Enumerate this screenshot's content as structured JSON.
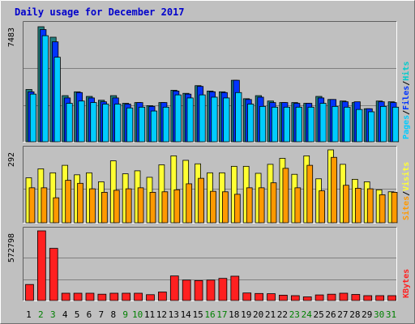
{
  "title": "Daily usage for December 2017",
  "colors": {
    "page_bg": "#c0c0c0",
    "plot_bg": "#c0c0c0",
    "title": "#0000cc",
    "hits": "#00cccc",
    "files": "#0033ff",
    "pages": "#00ccff",
    "visits": "#ffff33",
    "sites": "#ff9900",
    "kbytes": "#ff2020",
    "slash": "#000000",
    "weekend_label": "#008000",
    "weekday_label": "#000000"
  },
  "chart_data": [
    {
      "type": "bar",
      "panel": "top",
      "max_label": "7483",
      "ylim": [
        0,
        7483
      ],
      "legend": [
        {
          "key": "pages",
          "text": "Pages"
        },
        {
          "key": "files",
          "text": "Files"
        },
        {
          "key": "hits",
          "text": "Hits"
        }
      ],
      "series": [
        {
          "name": "Hits",
          "values": [
            3400,
            7483,
            6800,
            3000,
            3250,
            2950,
            2700,
            3000,
            2500,
            2550,
            2350,
            2550,
            3350,
            3150,
            3650,
            3300,
            3250,
            4000,
            2800,
            3000,
            2650,
            2550,
            2550,
            2500,
            2950,
            2750,
            2650,
            2550,
            2150,
            2650,
            2600
          ]
        },
        {
          "name": "Files",
          "values": [
            3250,
            7300,
            6500,
            2850,
            3200,
            2850,
            2600,
            2850,
            2450,
            2550,
            2300,
            2550,
            3300,
            3100,
            3600,
            3250,
            3200,
            4000,
            2750,
            2900,
            2550,
            2550,
            2500,
            2500,
            2850,
            2750,
            2600,
            2600,
            2150,
            2600,
            2550
          ]
        },
        {
          "name": "Pages",
          "values": [
            3100,
            6900,
            5500,
            2500,
            2650,
            2550,
            2450,
            2450,
            2200,
            2250,
            2000,
            2250,
            3050,
            2850,
            3050,
            2900,
            2850,
            3200,
            2450,
            2300,
            2250,
            2250,
            2250,
            2250,
            2500,
            2300,
            2250,
            2100,
            1950,
            2300,
            2250
          ]
        }
      ]
    },
    {
      "type": "bar",
      "panel": "middle",
      "max_label": "292",
      "ylim": [
        0,
        292
      ],
      "legend": [
        {
          "key": "sites",
          "text": "Sites"
        },
        {
          "key": "visits",
          "text": "Visits"
        }
      ],
      "series": [
        {
          "name": "Visits",
          "values": [
            180,
            216,
            200,
            230,
            192,
            200,
            164,
            248,
            196,
            208,
            182,
            232,
            268,
            250,
            236,
            200,
            200,
            226,
            226,
            198,
            234,
            258,
            194,
            268,
            176,
            292,
            234,
            174,
            164,
            132,
            124
          ]
        },
        {
          "name": "Sites",
          "values": [
            140,
            140,
            100,
            170,
            158,
            136,
            122,
            130,
            136,
            140,
            122,
            124,
            132,
            156,
            178,
            126,
            124,
            114,
            140,
            140,
            160,
            218,
            140,
            230,
            128,
            262,
            150,
            138,
            136,
            112,
            122
          ]
        }
      ]
    },
    {
      "type": "bar",
      "panel": "bottom",
      "max_label": "572798",
      "ylim": [
        0,
        572798
      ],
      "legend": [
        {
          "key": "kbytes",
          "text": "KBytes"
        }
      ],
      "series": [
        {
          "name": "KBytes",
          "values": [
            132000,
            572798,
            429000,
            60000,
            60000,
            60000,
            52000,
            60000,
            60000,
            60000,
            48000,
            70000,
            202000,
            168000,
            164000,
            168000,
            182000,
            200000,
            62000,
            58000,
            56000,
            44000,
            40000,
            30000,
            46000,
            52000,
            60000,
            50000,
            40000,
            40000,
            40000
          ]
        }
      ]
    }
  ],
  "x_axis": {
    "categories": [
      "1",
      "2",
      "3",
      "4",
      "5",
      "6",
      "7",
      "8",
      "9",
      "10",
      "11",
      "12",
      "13",
      "14",
      "15",
      "16",
      "17",
      "18",
      "19",
      "20",
      "21",
      "22",
      "23",
      "24",
      "25",
      "26",
      "27",
      "28",
      "29",
      "30",
      "31"
    ],
    "weekend": [
      false,
      true,
      true,
      false,
      false,
      false,
      false,
      false,
      true,
      true,
      false,
      false,
      false,
      false,
      false,
      true,
      true,
      false,
      false,
      false,
      false,
      false,
      true,
      true,
      false,
      false,
      false,
      false,
      false,
      true,
      true
    ]
  }
}
